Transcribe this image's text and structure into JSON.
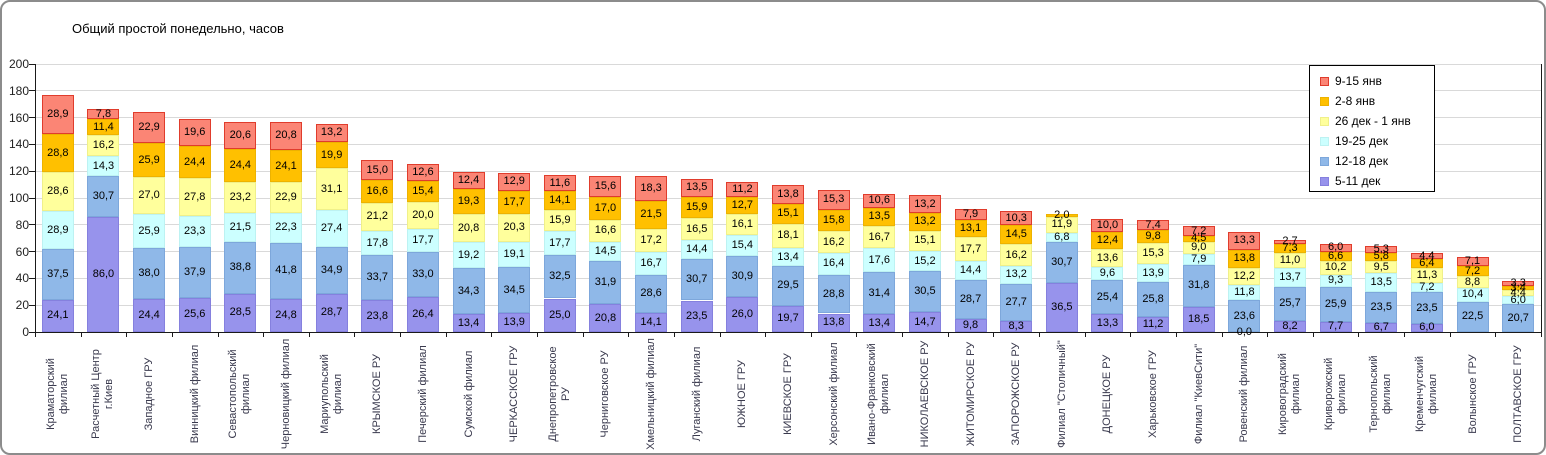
{
  "chart_data": {
    "type": "bar",
    "stacked": true,
    "title": "Общий простой понедельно, часов",
    "xlabel": "",
    "ylabel": "",
    "ylim": [
      0,
      200
    ],
    "ytick_step": 20,
    "grid": true,
    "legend_position": "top-right-inside",
    "decimal_separator": ",",
    "grid_color": "#d9d9d9",
    "axis_color": "#1a1a1a",
    "categories": [
      "Краматорский филиал",
      "Расчетный Центр г.Киев",
      "Западное ГРУ",
      "Винницкий филиал",
      "Севастопольский филиал",
      "Черновицкий филиал",
      "Мариупольский филиал",
      "КРЫМСКОЕ РУ",
      "Печерский филиал",
      "Сумской филиал",
      "ЧЕРКАССКОЕ ГРУ",
      "Днепропетровское РУ",
      "Черниговское РУ",
      "Хмельницкий филиал",
      "Луганский филиал",
      "ЮЖНОЕ ГРУ",
      "КИЕВСКОЕ ГРУ",
      "Херсонский филиал",
      "Ивано-Франковский филиал",
      "НИКОЛАЕВСКОЕ РУ",
      "ЖИТОМИРСКОЕ РУ",
      "ЗАПОРОЖСКОЕ РУ",
      "Филиал \"Столичный\"",
      "ДОНЕЦКОЕ РУ",
      "Харьковское ГРУ",
      "Филиал \"КиевСити\"",
      "Ровенский филиал",
      "Кировоградский филиал",
      "Криворожский филиал",
      "Тернопольский филиал",
      "Кременчугский филиал",
      "Волынское ГРУ",
      "ПОЛТАВСКОЕ ГРУ"
    ],
    "series": [
      {
        "name": "5-11 дек",
        "color": "#9793EC",
        "border": "#8580DE",
        "values": [
          24.1,
          86.0,
          24.4,
          25.6,
          28.5,
          24.8,
          28.7,
          23.8,
          26.4,
          13.4,
          13.9,
          25.0,
          20.8,
          14.1,
          23.5,
          26.0,
          19.7,
          13.8,
          13.4,
          14.7,
          9.8,
          8.3,
          36.5,
          13.3,
          11.2,
          18.5,
          0.0,
          8.2,
          7.7,
          6.7,
          6.0,
          null,
          null
        ]
      },
      {
        "name": "12-18 дек",
        "color": "#8FB8E8",
        "border": "#7DA7DB",
        "values": [
          37.5,
          30.7,
          38.0,
          37.9,
          38.8,
          41.8,
          34.9,
          33.7,
          33.0,
          34.3,
          34.5,
          32.5,
          31.9,
          28.6,
          30.7,
          30.9,
          29.5,
          28.8,
          31.4,
          30.5,
          28.7,
          27.7,
          30.7,
          25.4,
          25.8,
          31.8,
          23.6,
          25.7,
          25.9,
          23.5,
          23.5,
          22.5,
          20.7
        ]
      },
      {
        "name": "19-25 дек",
        "color": "#CCFFFF",
        "border": "#BDF2F2",
        "values": [
          28.9,
          14.3,
          25.9,
          23.3,
          21.5,
          22.3,
          27.4,
          17.8,
          17.7,
          19.2,
          19.1,
          17.7,
          14.5,
          16.7,
          14.4,
          15.4,
          13.4,
          16.4,
          17.6,
          15.2,
          14.4,
          13.2,
          6.8,
          9.6,
          13.9,
          7.9,
          11.8,
          13.7,
          9.3,
          13.5,
          7.2,
          10.4,
          6.0
        ]
      },
      {
        "name": "26 дек - 1 янв",
        "color": "#FFFF9C",
        "border": "#F0F08A",
        "values": [
          28.6,
          16.2,
          27.0,
          27.8,
          23.2,
          22.9,
          31.1,
          21.2,
          20.0,
          20.8,
          20.3,
          15.9,
          16.6,
          17.2,
          16.5,
          16.1,
          18.1,
          16.2,
          16.7,
          15.1,
          17.7,
          16.2,
          11.9,
          13.6,
          15.3,
          9.0,
          12.2,
          11.0,
          10.2,
          9.5,
          11.3,
          8.8,
          4.4
        ]
      },
      {
        "name": "2-8 янв",
        "color": "#FFC000",
        "border": "#EDB200",
        "values": [
          28.8,
          11.4,
          25.9,
          24.4,
          24.4,
          24.1,
          19.9,
          16.6,
          15.4,
          19.3,
          17.7,
          14.1,
          17.0,
          21.5,
          15.9,
          12.7,
          15.1,
          15.8,
          13.5,
          13.2,
          13.1,
          14.5,
          2.0,
          12.4,
          9.8,
          4.5,
          13.8,
          7.3,
          6.6,
          5.8,
          6.4,
          7.2,
          3.4
        ]
      },
      {
        "name": "9-15 янв",
        "color": "#FB8575",
        "border": "#E03C2C",
        "values": [
          28.9,
          7.8,
          22.9,
          19.6,
          20.6,
          20.8,
          13.2,
          15.0,
          12.6,
          12.4,
          12.9,
          11.6,
          15.6,
          18.3,
          13.5,
          11.2,
          13.8,
          15.3,
          10.6,
          13.2,
          7.9,
          10.3,
          null,
          10.0,
          7.4,
          7.2,
          13.3,
          2.7,
          6.0,
          5.3,
          4.4,
          7.1,
          3.3
        ]
      }
    ]
  }
}
